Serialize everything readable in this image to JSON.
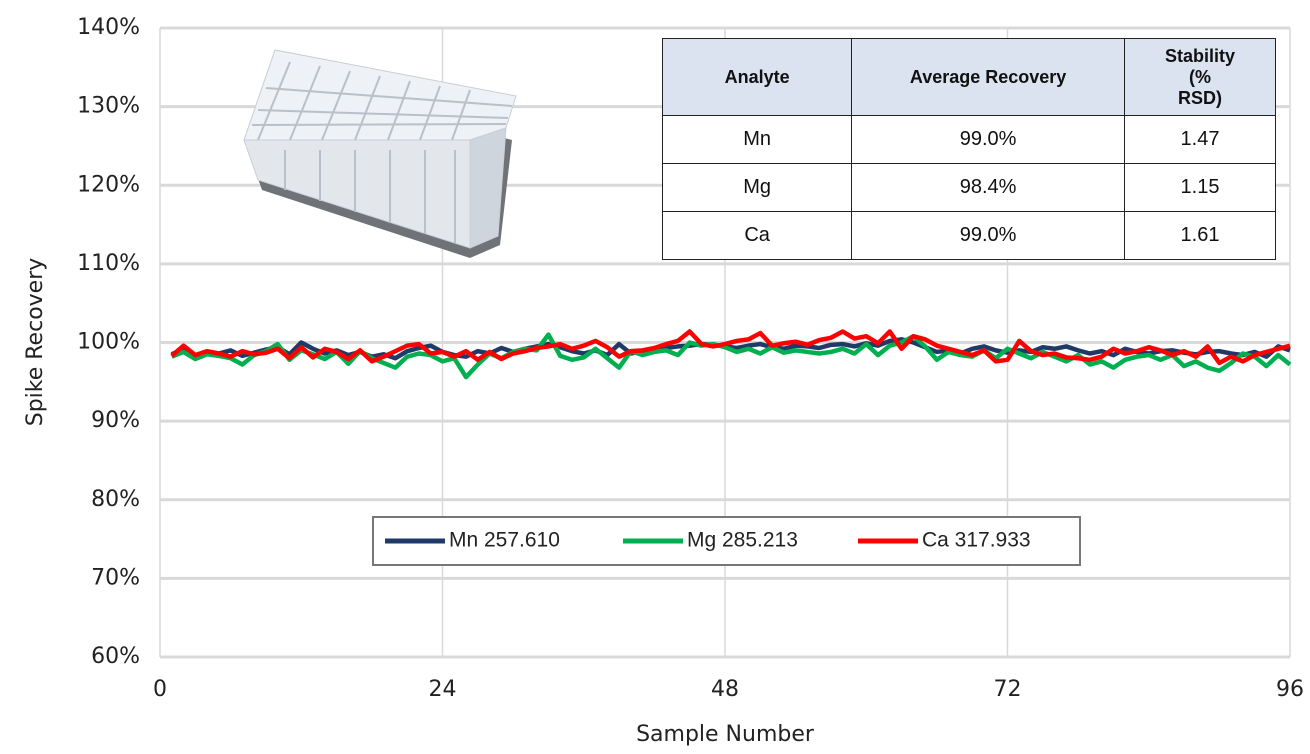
{
  "chart_data": {
    "type": "line",
    "y_label": "Spike Recovery",
    "x_label": "Sample Number",
    "xlim": [
      0,
      96
    ],
    "xticks": [
      0,
      24,
      48,
      72,
      96
    ],
    "ylim": [
      60,
      140
    ],
    "yticks": [
      {
        "value": 60,
        "label": "60%"
      },
      {
        "value": 70,
        "label": "70%"
      },
      {
        "value": 80,
        "label": "80%"
      },
      {
        "value": 90,
        "label": "90%"
      },
      {
        "value": 100,
        "label": "100%"
      },
      {
        "value": 110,
        "label": "110%"
      },
      {
        "value": 120,
        "label": "120%"
      },
      {
        "value": 130,
        "label": "130%"
      },
      {
        "value": 140,
        "label": "140%"
      }
    ],
    "grid": true,
    "legend": "lower center",
    "x": [
      1,
      2,
      3,
      4,
      5,
      6,
      7,
      8,
      9,
      10,
      11,
      12,
      13,
      14,
      15,
      16,
      17,
      18,
      19,
      20,
      21,
      22,
      23,
      24,
      25,
      26,
      27,
      28,
      29,
      30,
      31,
      32,
      33,
      34,
      35,
      36,
      37,
      38,
      39,
      40,
      41,
      42,
      43,
      44,
      45,
      46,
      47,
      48,
      49,
      50,
      51,
      52,
      53,
      54,
      55,
      56,
      57,
      58,
      59,
      60,
      61,
      62,
      63,
      64,
      65,
      66,
      67,
      68,
      69,
      70,
      71,
      72,
      73,
      74,
      75,
      76,
      77,
      78,
      79,
      80,
      81,
      82,
      83,
      84,
      85,
      86,
      87,
      88,
      89,
      90,
      91,
      92,
      93,
      94,
      95,
      96
    ],
    "series": [
      {
        "name": "Mn 257.610",
        "color": "#1f3a68",
        "values": [
          98.5,
          99.2,
          98.4,
          98.8,
          98.6,
          99.0,
          98.3,
          98.7,
          99.1,
          99.4,
          98.5,
          100.0,
          99.2,
          98.6,
          99.0,
          98.4,
          98.8,
          98.2,
          98.5,
          98.0,
          98.9,
          99.3,
          99.6,
          98.8,
          98.4,
          98.2,
          98.9,
          98.6,
          99.3,
          98.8,
          99.2,
          99.5,
          99.8,
          99.4,
          98.9,
          98.6,
          99.0,
          98.4,
          99.8,
          98.6,
          98.9,
          99.1,
          99.3,
          99.5,
          99.6,
          99.8,
          99.7,
          99.5,
          99.3,
          99.6,
          99.8,
          99.4,
          99.2,
          99.6,
          99.5,
          99.3,
          99.7,
          99.8,
          99.5,
          99.9,
          99.6,
          100.2,
          100.4,
          100.0,
          99.4,
          98.8,
          99.0,
          98.6,
          99.2,
          99.5,
          99.0,
          98.7,
          99.0,
          98.8,
          99.4,
          99.2,
          99.5,
          99.0,
          98.6,
          98.9,
          98.4,
          99.2,
          98.8,
          98.6,
          98.9,
          99.0,
          98.7,
          98.5,
          98.8,
          98.9,
          98.6,
          98.4,
          98.8,
          98.2,
          99.5,
          99.0
        ]
      },
      {
        "name": "Mg 285.213",
        "color": "#00b050",
        "values": [
          98.2,
          98.8,
          97.9,
          98.5,
          98.3,
          98.0,
          97.2,
          98.4,
          98.9,
          99.8,
          97.8,
          99.0,
          98.5,
          97.9,
          98.8,
          97.3,
          98.9,
          98.0,
          97.4,
          96.8,
          98.2,
          98.6,
          98.4,
          97.6,
          98.0,
          95.6,
          97.2,
          98.6,
          98.0,
          98.8,
          99.2,
          99.0,
          101.0,
          98.3,
          97.8,
          98.1,
          99.2,
          98.0,
          96.8,
          98.9,
          98.4,
          98.8,
          99.0,
          98.4,
          100.0,
          99.6,
          99.8,
          99.4,
          98.8,
          99.2,
          98.6,
          99.4,
          98.7,
          99.0,
          98.8,
          98.6,
          98.8,
          99.2,
          98.6,
          99.8,
          98.4,
          99.6,
          100.0,
          100.8,
          99.5,
          97.8,
          98.8,
          98.4,
          98.2,
          99.0,
          98.0,
          99.2,
          98.6,
          98.0,
          98.8,
          98.2,
          97.6,
          98.4,
          97.2,
          97.6,
          96.8,
          97.8,
          98.2,
          98.4,
          97.8,
          98.4,
          97.0,
          97.6,
          96.8,
          96.4,
          97.4,
          98.6,
          98.2,
          97.0,
          98.4,
          97.2
        ]
      },
      {
        "name": "Ca 317.933",
        "color": "#ff0000",
        "values": [
          98.3,
          99.6,
          98.4,
          98.9,
          98.6,
          98.2,
          98.9,
          98.5,
          98.7,
          99.2,
          98.0,
          99.4,
          98.1,
          99.2,
          98.8,
          97.9,
          99.0,
          97.6,
          98.2,
          98.9,
          99.6,
          99.8,
          98.6,
          98.8,
          98.2,
          98.9,
          97.8,
          98.8,
          97.9,
          98.6,
          98.9,
          99.3,
          99.5,
          99.8,
          99.2,
          99.6,
          100.2,
          99.4,
          98.2,
          98.9,
          99.0,
          99.3,
          99.8,
          100.2,
          101.4,
          99.8,
          99.5,
          99.8,
          100.2,
          100.4,
          101.2,
          99.6,
          99.9,
          100.1,
          99.7,
          100.3,
          100.6,
          101.4,
          100.5,
          100.8,
          99.9,
          101.4,
          99.2,
          100.8,
          100.4,
          99.6,
          99.2,
          98.8,
          98.4,
          99.0,
          97.6,
          97.8,
          100.2,
          98.9,
          98.4,
          98.6,
          98.1,
          98.0,
          97.8,
          98.2,
          99.2,
          98.6,
          98.9,
          99.4,
          99.0,
          98.4,
          98.9,
          98.2,
          99.5,
          97.4,
          98.2,
          97.6,
          98.4,
          98.8,
          99.2,
          99.6
        ]
      }
    ]
  },
  "table": {
    "header": [
      "Analyte",
      "Average Recovery",
      "Stability (% RSD)"
    ],
    "rows": [
      [
        "Mn",
        "99.0%",
        "1.47"
      ],
      [
        "Mg",
        "98.4%",
        "1.15"
      ],
      [
        "Ca",
        "99.0%",
        "1.61"
      ]
    ]
  }
}
